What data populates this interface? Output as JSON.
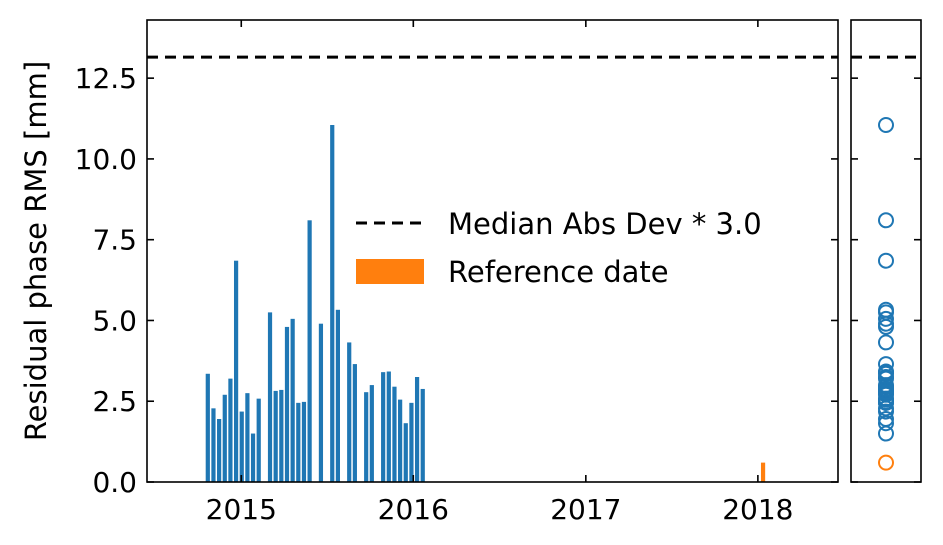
{
  "chart_data": [
    {
      "type": "bar",
      "ylabel": "Residual phase RMS [mm]",
      "xlabel": "",
      "xlim": [
        "2014-06-15",
        "2018-06-20"
      ],
      "ylim": [
        0,
        14.3
      ],
      "xticks": [
        {
          "date": "2015-01-01",
          "label": "2015"
        },
        {
          "date": "2016-01-01",
          "label": "2016"
        },
        {
          "date": "2017-01-01",
          "label": "2017"
        },
        {
          "date": "2018-01-01",
          "label": "2018"
        }
      ],
      "yticks": [
        {
          "value": 0,
          "label": "0.0"
        },
        {
          "value": 2.5,
          "label": "2.5"
        },
        {
          "value": 5,
          "label": "5.0"
        },
        {
          "value": 7.5,
          "label": "7.5"
        },
        {
          "value": 10,
          "label": "10.0"
        },
        {
          "value": 12.5,
          "label": "12.5"
        }
      ],
      "threshold": {
        "value": 13.15,
        "label": "Median Abs Dev * 3.0",
        "style": "dashed",
        "color": "#000000"
      },
      "series": [
        {
          "color": "#1f77b4",
          "points": [
            {
              "date": "2014-10-22",
              "value": 3.35
            },
            {
              "date": "2014-11-03",
              "value": 2.28
            },
            {
              "date": "2014-11-15",
              "value": 1.95
            },
            {
              "date": "2014-11-27",
              "value": 2.7
            },
            {
              "date": "2014-12-09",
              "value": 3.2
            },
            {
              "date": "2014-12-21",
              "value": 6.85
            },
            {
              "date": "2015-01-02",
              "value": 2.18
            },
            {
              "date": "2015-01-14",
              "value": 2.75
            },
            {
              "date": "2015-01-26",
              "value": 1.5
            },
            {
              "date": "2015-02-07",
              "value": 2.58
            },
            {
              "date": "2015-03-03",
              "value": 5.25
            },
            {
              "date": "2015-03-15",
              "value": 2.82
            },
            {
              "date": "2015-03-27",
              "value": 2.85
            },
            {
              "date": "2015-04-08",
              "value": 4.8
            },
            {
              "date": "2015-04-20",
              "value": 5.05
            },
            {
              "date": "2015-05-02",
              "value": 2.45
            },
            {
              "date": "2015-05-14",
              "value": 2.48
            },
            {
              "date": "2015-05-26",
              "value": 8.1
            },
            {
              "date": "2015-06-19",
              "value": 4.9
            },
            {
              "date": "2015-07-13",
              "value": 11.05
            },
            {
              "date": "2015-07-25",
              "value": 5.33
            },
            {
              "date": "2015-08-18",
              "value": 4.32
            },
            {
              "date": "2015-08-30",
              "value": 3.65
            },
            {
              "date": "2015-09-23",
              "value": 2.78
            },
            {
              "date": "2015-10-05",
              "value": 3.0
            },
            {
              "date": "2015-10-29",
              "value": 3.4
            },
            {
              "date": "2015-11-10",
              "value": 3.42
            },
            {
              "date": "2015-11-22",
              "value": 2.95
            },
            {
              "date": "2015-12-04",
              "value": 2.55
            },
            {
              "date": "2015-12-16",
              "value": 1.82
            },
            {
              "date": "2015-12-28",
              "value": 2.45
            },
            {
              "date": "2016-01-09",
              "value": 3.25
            },
            {
              "date": "2016-01-21",
              "value": 2.88
            }
          ]
        },
        {
          "name": "Reference date",
          "color": "#ff7f0e",
          "points": [
            {
              "date": "2018-01-12",
              "value": 0.6
            }
          ]
        }
      ],
      "legend": {
        "placement": "center-right",
        "entries": [
          "Median Abs Dev * 3.0",
          "Reference date"
        ]
      },
      "grid": false
    },
    {
      "type": "scatter",
      "marker": "open-circle",
      "shares_y_axis_with_left_panel": true,
      "values": [
        3.35,
        2.28,
        1.95,
        2.7,
        3.2,
        6.85,
        2.18,
        2.75,
        1.5,
        2.58,
        5.25,
        2.82,
        2.85,
        4.8,
        5.05,
        2.45,
        2.48,
        8.1,
        4.9,
        11.05,
        5.33,
        4.32,
        3.65,
        2.78,
        3.0,
        3.4,
        3.42,
        2.95,
        2.55,
        1.82,
        2.45,
        3.25,
        2.88
      ],
      "reference_value": 0.6,
      "colors": {
        "points": "#1f77b4",
        "reference": "#ff7f0e"
      },
      "grid": false
    }
  ]
}
